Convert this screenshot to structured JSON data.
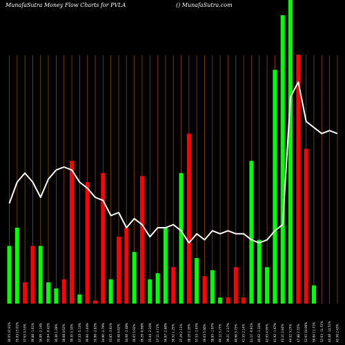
{
  "header": {
    "left": "MunafaSutra  Money Flow  Charts for PVLA",
    "right": "() MunafaSutra.com"
  },
  "chart_data": {
    "type": "bar",
    "title": "MunafaSutra  Money Flow  Charts for PVLA",
    "ylim": [
      0,
      100
    ],
    "grid": true,
    "colors": {
      "up": "#00ff00",
      "down": "#ff0000",
      "line": "#ffffff",
      "grid": "#8a4a00",
      "background": "#000000"
    },
    "categories": [
      "30.65 47.91%",
      "35.03 15.01%",
      "37.63 3.53%",
      "36.88 -1.61%",
      "36.09 -2.14%",
      "35.94 -0.42%",
      "36.40 1.28%",
      "38.08 4.62%",
      "39.35 3.33%",
      "37.33 -5.13%",
      "36.94 -1.04%",
      "35.90 -2.82%",
      "34.90 -2.79%",
      "33.85 -3.01%",
      "35.48 4.82%",
      "34.60 -2.48%",
      "36.65 5.92%",
      "36.29 -0.98%",
      "35.44 -2.34%",
      "37.11 4.71%",
      "36.07 -2.80%",
      "36.52 1.25%",
      "37.29 2.11%",
      "38.16 2.33%",
      "37.53 -1.65%",
      "39.63 5.60%",
      "38.85 -1.97%",
      "40.12 3.27%",
      "39.21 -2.27%",
      "40.68 3.75%",
      "41.55 2.14%",
      "41.17 -0.91%",
      "40.62 -1.34%",
      "42.63 4.95%",
      "41.92 -1.67%",
      "43.11 2.84%",
      "44.52 3.27%",
      "47.88 7.55%",
      "52.67 10.00%",
      "58.84 11.71%",
      "52.03 -11.57%",
      "44.48 -14.51%",
      "45.56 2.43%"
    ],
    "series": [
      {
        "values": [
          19,
          25,
          7,
          19,
          19,
          7,
          5,
          8,
          47,
          3,
          40,
          1,
          43,
          8,
          22,
          25,
          17,
          42,
          8,
          10,
          25,
          12,
          43,
          56,
          15,
          9,
          11,
          2,
          2,
          12,
          2,
          47,
          21,
          12,
          77,
          95,
          100,
          82,
          51,
          6,
          0,
          0,
          0
        ],
        "direction": [
          "up",
          "up",
          "down",
          "down",
          "up",
          "up",
          "up",
          "down",
          "down",
          "up",
          "down",
          "down",
          "down",
          "up",
          "down",
          "down",
          "up",
          "down",
          "up",
          "up",
          "up",
          "down",
          "up",
          "down",
          "up",
          "down",
          "up",
          "up",
          "down",
          "down",
          "down",
          "up",
          "up",
          "up",
          "up",
          "up",
          "up",
          "down",
          "down",
          "up",
          "up",
          "up",
          "up"
        ]
      },
      {
        "values": [
          33,
          40,
          43,
          40,
          35,
          41,
          44,
          45,
          44,
          40,
          38,
          35,
          34,
          29,
          30,
          25,
          28,
          26,
          22,
          25,
          25,
          26,
          24,
          20,
          23,
          21,
          24,
          23,
          24,
          23,
          23,
          21,
          20,
          21,
          24,
          26,
          68,
          73,
          60,
          58,
          56,
          57,
          56
        ]
      }
    ]
  }
}
